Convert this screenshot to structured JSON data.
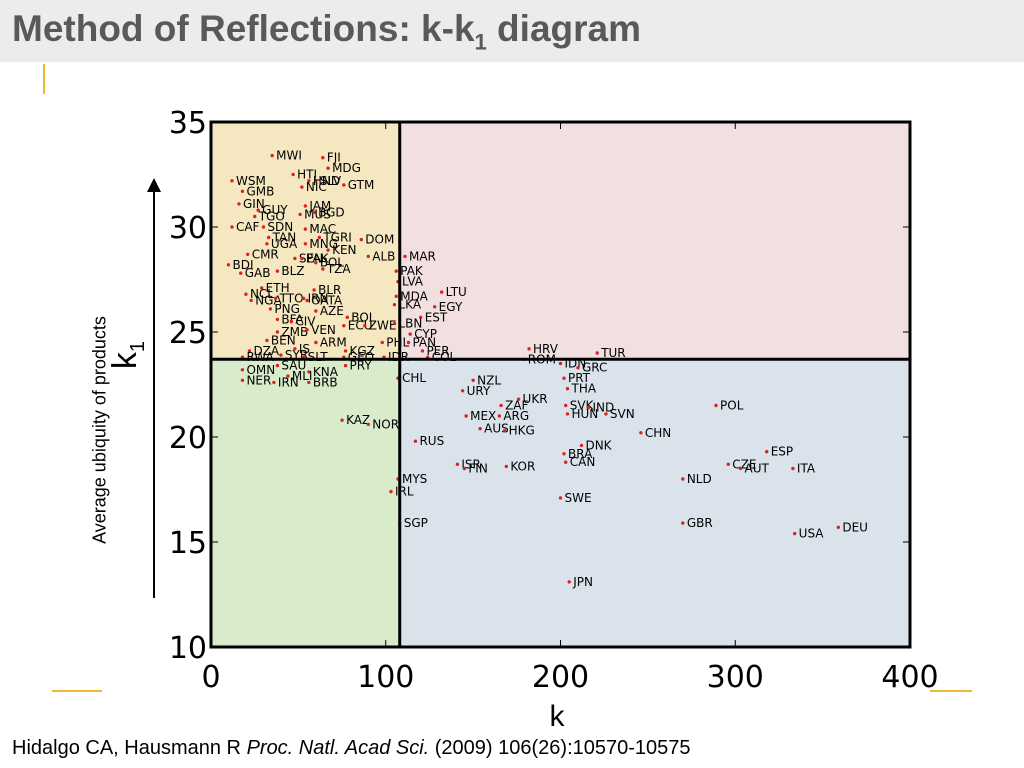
{
  "header": {
    "title_main": "Method of Reflections: k-k",
    "title_sub": "1",
    "title_end": " diagram"
  },
  "chart_data": {
    "type": "scatter",
    "xlabel_main": "k",
    "ylabel_main": "k",
    "ylabel_sub": "1",
    "ylabel_outer": "Average ubiquity of products",
    "xlim": [
      0,
      400
    ],
    "ylim": [
      10,
      35
    ],
    "xticks": [
      0,
      100,
      200,
      300,
      400
    ],
    "yticks": [
      10,
      15,
      20,
      25,
      30,
      35
    ],
    "x_threshold": 108,
    "y_threshold": 23.7,
    "quadrant_colors": {
      "top_left": "#f5e8c0",
      "top_right": "#f2e0e0",
      "bottom_left": "#d8eccb",
      "bottom_right": "#dae3ec"
    },
    "point_color": "#e02020",
    "points": [
      {
        "label": "MWI",
        "x": 35,
        "y": 33.4
      },
      {
        "label": "FJI",
        "x": 64,
        "y": 33.3
      },
      {
        "label": "MDG",
        "x": 67,
        "y": 32.8
      },
      {
        "label": "HTI",
        "x": 47,
        "y": 32.5
      },
      {
        "label": "SLV",
        "x": 60,
        "y": 32.2
      },
      {
        "label": "HND",
        "x": 56,
        "y": 32.2
      },
      {
        "label": "GTM",
        "x": 76,
        "y": 32.0
      },
      {
        "label": "WSM",
        "x": 12,
        "y": 32.2
      },
      {
        "label": "NIC",
        "x": 52,
        "y": 31.9
      },
      {
        "label": "GMB",
        "x": 18,
        "y": 31.7
      },
      {
        "label": "GIN",
        "x": 16,
        "y": 31.1
      },
      {
        "label": "JAM",
        "x": 54,
        "y": 31.0
      },
      {
        "label": "GUY",
        "x": 27,
        "y": 30.8
      },
      {
        "label": "MUS",
        "x": 51,
        "y": 30.6
      },
      {
        "label": "BGD",
        "x": 59,
        "y": 30.7
      },
      {
        "label": "TGO",
        "x": 25,
        "y": 30.5
      },
      {
        "label": "CAF",
        "x": 12,
        "y": 30.0
      },
      {
        "label": "SDN",
        "x": 30,
        "y": 30.0
      },
      {
        "label": "MAC",
        "x": 54,
        "y": 29.9
      },
      {
        "label": "TAN",
        "x": 33,
        "y": 29.5
      },
      {
        "label": "TGRI",
        "x": 62,
        "y": 29.5
      },
      {
        "label": "DOM",
        "x": 86,
        "y": 29.4
      },
      {
        "label": "UGA",
        "x": 32,
        "y": 29.2
      },
      {
        "label": "MNG",
        "x": 54,
        "y": 29.2
      },
      {
        "label": "KEN",
        "x": 67,
        "y": 28.9
      },
      {
        "label": "CMR",
        "x": 21,
        "y": 28.7
      },
      {
        "label": "ALB",
        "x": 90,
        "y": 28.6
      },
      {
        "label": "SEN",
        "x": 48,
        "y": 28.5
      },
      {
        "label": "PAK",
        "x": 52,
        "y": 28.5
      },
      {
        "label": "MAR",
        "x": 111,
        "y": 28.6
      },
      {
        "label": "BOL",
        "x": 60,
        "y": 28.3
      },
      {
        "label": "TZA",
        "x": 64,
        "y": 28.0
      },
      {
        "label": "BDI",
        "x": 10,
        "y": 28.2
      },
      {
        "label": "GAB",
        "x": 17,
        "y": 27.8
      },
      {
        "label": "BLZ",
        "x": 38,
        "y": 27.9
      },
      {
        "label": "PAK",
        "x": 106,
        "y": 27.9
      },
      {
        "label": "LVA",
        "x": 107,
        "y": 27.4
      },
      {
        "label": "ETH",
        "x": 29,
        "y": 27.1
      },
      {
        "label": "NCL",
        "x": 20,
        "y": 26.8
      },
      {
        "label": "BLR",
        "x": 59,
        "y": 27.0
      },
      {
        "label": "NGA",
        "x": 23,
        "y": 26.5
      },
      {
        "label": "TTO",
        "x": 37,
        "y": 26.6
      },
      {
        "label": "IRN",
        "x": 53,
        "y": 26.6
      },
      {
        "label": "OATA",
        "x": 55,
        "y": 26.5
      },
      {
        "label": "MDA",
        "x": 106,
        "y": 26.7
      },
      {
        "label": "LTU",
        "x": 132,
        "y": 26.9
      },
      {
        "label": "PNG",
        "x": 34,
        "y": 26.1
      },
      {
        "label": "AZE",
        "x": 60,
        "y": 26.0
      },
      {
        "label": "LKA",
        "x": 105,
        "y": 26.3
      },
      {
        "label": "EGY",
        "x": 128,
        "y": 26.2
      },
      {
        "label": "BOL",
        "x": 78,
        "y": 25.7
      },
      {
        "label": "EST",
        "x": 120,
        "y": 25.7
      },
      {
        "label": "BFA",
        "x": 38,
        "y": 25.6
      },
      {
        "label": "CIV",
        "x": 46,
        "y": 25.5
      },
      {
        "label": "ECU",
        "x": 76,
        "y": 25.3
      },
      {
        "label": "ZWE",
        "x": 88,
        "y": 25.3
      },
      {
        "label": "LBN",
        "x": 105,
        "y": 25.4
      },
      {
        "label": "ZMB",
        "x": 38,
        "y": 25.0
      },
      {
        "label": "VEN",
        "x": 55,
        "y": 25.1
      },
      {
        "label": "CYP",
        "x": 114,
        "y": 24.9
      },
      {
        "label": "BEN",
        "x": 32,
        "y": 24.6
      },
      {
        "label": "ARM",
        "x": 60,
        "y": 24.5
      },
      {
        "label": "PHL",
        "x": 98,
        "y": 24.5
      },
      {
        "label": "PAN",
        "x": 113,
        "y": 24.5
      },
      {
        "label": "DZA",
        "x": 22,
        "y": 24.1
      },
      {
        "label": "IS",
        "x": 48,
        "y": 24.2
      },
      {
        "label": "KGZ",
        "x": 77,
        "y": 24.1
      },
      {
        "label": "PER",
        "x": 121,
        "y": 24.1
      },
      {
        "label": "RWA",
        "x": 18,
        "y": 23.8
      },
      {
        "label": "SYR",
        "x": 40,
        "y": 23.9
      },
      {
        "label": "SLT",
        "x": 53,
        "y": 23.8
      },
      {
        "label": "GEO",
        "x": 76,
        "y": 23.8
      },
      {
        "label": "IDR",
        "x": 99,
        "y": 23.8
      },
      {
        "label": "COL",
        "x": 124,
        "y": 23.8
      },
      {
        "label": "PRY",
        "x": 77,
        "y": 23.4
      },
      {
        "label": "OMN",
        "x": 18,
        "y": 23.2
      },
      {
        "label": "SAU",
        "x": 38,
        "y": 23.4
      },
      {
        "label": "KNA",
        "x": 56,
        "y": 23.1
      },
      {
        "label": "MLI",
        "x": 44,
        "y": 22.9
      },
      {
        "label": "NER",
        "x": 18,
        "y": 22.7
      },
      {
        "label": "IRN",
        "x": 36,
        "y": 22.6
      },
      {
        "label": "BRB",
        "x": 56,
        "y": 22.6
      },
      {
        "label": "CHL",
        "x": 107,
        "y": 22.8
      },
      {
        "label": "NZL",
        "x": 150,
        "y": 22.7
      },
      {
        "label": "URY",
        "x": 144,
        "y": 22.2
      },
      {
        "label": "PRT",
        "x": 202,
        "y": 22.8
      },
      {
        "label": "THA",
        "x": 204,
        "y": 22.3
      },
      {
        "label": "HRV",
        "x": 182,
        "y": 24.2
      },
      {
        "label": "TUR",
        "x": 221,
        "y": 24.0
      },
      {
        "label": "ROM",
        "x": 179,
        "y": 23.7
      },
      {
        "label": "IDN",
        "x": 200,
        "y": 23.5
      },
      {
        "label": "GRC",
        "x": 210,
        "y": 23.3
      },
      {
        "label": "UKR",
        "x": 176,
        "y": 21.8
      },
      {
        "label": "ZAF",
        "x": 166,
        "y": 21.5
      },
      {
        "label": "SVK",
        "x": 203,
        "y": 21.5
      },
      {
        "label": "IND",
        "x": 216,
        "y": 21.4
      },
      {
        "label": "POL",
        "x": 289,
        "y": 21.5
      },
      {
        "label": "MEX",
        "x": 146,
        "y": 21.0
      },
      {
        "label": "ARG",
        "x": 165,
        "y": 21.0
      },
      {
        "label": "HUN",
        "x": 204,
        "y": 21.1
      },
      {
        "label": "SVN",
        "x": 226,
        "y": 21.1
      },
      {
        "label": "AUS",
        "x": 154,
        "y": 20.4
      },
      {
        "label": "HKG",
        "x": 168,
        "y": 20.3
      },
      {
        "label": "CHN",
        "x": 246,
        "y": 20.2
      },
      {
        "label": "KAZ",
        "x": 75,
        "y": 20.8
      },
      {
        "label": "NOR",
        "x": 90,
        "y": 20.6
      },
      {
        "label": "RUS",
        "x": 117,
        "y": 19.8
      },
      {
        "label": "DNK",
        "x": 212,
        "y": 19.6
      },
      {
        "label": "BRA",
        "x": 202,
        "y": 19.2
      },
      {
        "label": "CAN",
        "x": 203,
        "y": 18.8
      },
      {
        "label": "ISR",
        "x": 141,
        "y": 18.7
      },
      {
        "label": "FIN",
        "x": 145,
        "y": 18.5
      },
      {
        "label": "KOR",
        "x": 169,
        "y": 18.6
      },
      {
        "label": "ESP",
        "x": 318,
        "y": 19.3
      },
      {
        "label": "CZE",
        "x": 296,
        "y": 18.7
      },
      {
        "label": "AUT",
        "x": 303,
        "y": 18.5
      },
      {
        "label": "ITA",
        "x": 333,
        "y": 18.5
      },
      {
        "label": "NLD",
        "x": 270,
        "y": 18.0
      },
      {
        "label": "MYS",
        "x": 107,
        "y": 18.0
      },
      {
        "label": "IRL",
        "x": 103,
        "y": 17.4
      },
      {
        "label": "SWE",
        "x": 200,
        "y": 17.1
      },
      {
        "label": "SGP",
        "x": 108,
        "y": 15.9
      },
      {
        "label": "GBR",
        "x": 270,
        "y": 15.9
      },
      {
        "label": "DEU",
        "x": 359,
        "y": 15.7
      },
      {
        "label": "USA",
        "x": 334,
        "y": 15.4
      },
      {
        "label": "JPN",
        "x": 205,
        "y": 13.1
      }
    ]
  },
  "citation": {
    "authors": "Hidalgo CA, Hausmann R ",
    "journal": "Proc. Natl. Acad Sci.",
    "details": " (2009) 106(26):10570-10575"
  }
}
